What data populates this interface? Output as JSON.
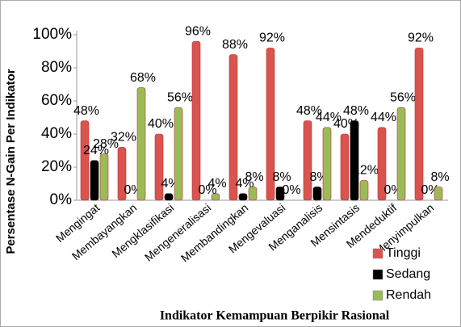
{
  "chart_data": {
    "type": "bar",
    "y_label": "Persentase N-Gain Per Indikator",
    "x_label": "Indikator Kemampuan Berpikir Rasional",
    "categories": [
      "Mengingat",
      "Membayangkan",
      "Mengklasifikasi",
      "Mengeneralisasi",
      "Membandingkan",
      "Mengevaluasi",
      "Menganalisis",
      "Mensintasis",
      "Mendeduktif",
      "Menyimpulkan"
    ],
    "series": [
      {
        "name": "Tinggi",
        "color": "#d9534f",
        "values": [
          48,
          32,
          40,
          96,
          88,
          92,
          48,
          40,
          44,
          92
        ],
        "value_labels": [
          "48%",
          "32%",
          "40%",
          "96%",
          "88%",
          "92%",
          "48%",
          "40%",
          "44%",
          "92%"
        ]
      },
      {
        "name": "Sedang",
        "color": "#000000",
        "values": [
          24,
          0,
          4,
          0,
          4,
          8,
          8,
          48,
          0,
          0
        ],
        "value_labels": [
          "24%",
          "0%",
          "4%",
          "0%",
          "4%",
          "8%",
          "8%",
          "48%",
          "0%",
          "0%"
        ]
      },
      {
        "name": "Rendah",
        "color": "#9bbb59",
        "values": [
          28,
          68,
          56,
          4,
          8,
          0,
          44,
          12,
          56,
          8
        ],
        "value_labels": [
          "28%",
          "68%",
          "56%",
          "4%",
          "8%",
          "0%",
          "44%",
          "12%",
          "56%",
          "8%"
        ]
      }
    ],
    "ylim": [
      0,
      100
    ],
    "yticks": [
      {
        "value": 0,
        "label": "0%"
      },
      {
        "value": 20,
        "label": "20%"
      },
      {
        "value": 40,
        "label": "40%"
      },
      {
        "value": 60,
        "label": "60%"
      },
      {
        "value": 80,
        "label": "80%"
      },
      {
        "value": 100,
        "label": "100%"
      }
    ],
    "grid": false,
    "legend": "bottom-right"
  }
}
